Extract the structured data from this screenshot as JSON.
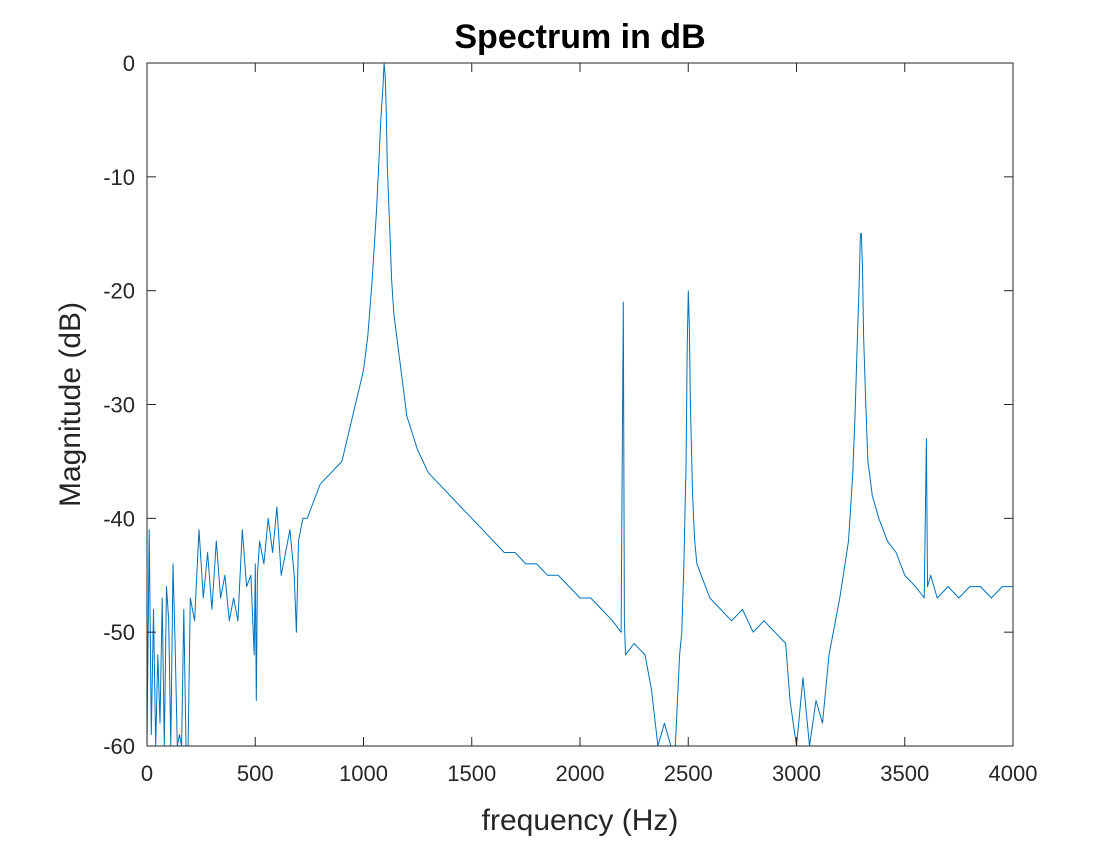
{
  "chart_data": {
    "type": "line",
    "title": "Spectrum in dB",
    "xlabel": "frequency (Hz)",
    "ylabel": "Magnitude (dB)",
    "xlim": [
      0,
      4000
    ],
    "ylim": [
      -60,
      0
    ],
    "xticks": [
      0,
      500,
      1000,
      1500,
      2000,
      2500,
      3000,
      3500,
      4000
    ],
    "xtick_labels": [
      "0",
      "500",
      "1000",
      "1500",
      "2000",
      "2500",
      "3000",
      "3500",
      "4000"
    ],
    "yticks": [
      0,
      -10,
      -20,
      -30,
      -40,
      -50,
      -60
    ],
    "ytick_labels": [
      "0",
      "-10",
      "-20",
      "-30",
      "-40",
      "-50",
      "-60"
    ],
    "grid": false,
    "series": [
      {
        "color": "#0072BD",
        "x": [
          0,
          10,
          20,
          30,
          40,
          50,
          60,
          70,
          80,
          90,
          100,
          110,
          120,
          130,
          140,
          150,
          160,
          170,
          180,
          190,
          200,
          220,
          240,
          260,
          280,
          300,
          320,
          340,
          360,
          380,
          400,
          420,
          440,
          460,
          480,
          495,
          500,
          505,
          510,
          520,
          540,
          560,
          580,
          600,
          620,
          640,
          660,
          680,
          690,
          700,
          720,
          740,
          760,
          780,
          800,
          850,
          900,
          950,
          1000,
          1020,
          1040,
          1060,
          1070,
          1080,
          1090,
          1095,
          1100,
          1105,
          1110,
          1120,
          1130,
          1140,
          1160,
          1180,
          1200,
          1250,
          1300,
          1350,
          1400,
          1450,
          1500,
          1550,
          1600,
          1650,
          1700,
          1750,
          1800,
          1850,
          1900,
          1950,
          2000,
          2050,
          2100,
          2150,
          2190,
          2200,
          2205,
          2210,
          2250,
          2300,
          2330,
          2360,
          2390,
          2420,
          2440,
          2460,
          2470,
          2480,
          2490,
          2495,
          2500,
          2505,
          2510,
          2520,
          2530,
          2540,
          2560,
          2600,
          2650,
          2700,
          2750,
          2800,
          2850,
          2900,
          2950,
          2970,
          3000,
          3030,
          3060,
          3090,
          3120,
          3150,
          3200,
          3240,
          3260,
          3270,
          3280,
          3290,
          3295,
          3300,
          3305,
          3310,
          3320,
          3330,
          3350,
          3380,
          3420,
          3460,
          3500,
          3550,
          3590,
          3600,
          3605,
          3620,
          3650,
          3700,
          3750,
          3800,
          3850,
          3900,
          3950,
          4000
        ],
        "y": [
          -60,
          -41,
          -59,
          -48,
          -60,
          -52,
          -58,
          -47,
          -60,
          -46,
          -49,
          -60,
          -44,
          -51,
          -60,
          -59,
          -60,
          -48,
          -60,
          -60,
          -47,
          -49,
          -41,
          -47,
          -43,
          -48,
          -42,
          -47,
          -45,
          -49,
          -47,
          -49,
          -41,
          -46,
          -45,
          -52,
          -44,
          -56,
          -45,
          -42,
          -44,
          -40,
          -43,
          -39,
          -45,
          -43,
          -41,
          -45,
          -50,
          -42,
          -40,
          -40,
          -39,
          -38,
          -37,
          -36,
          -35,
          -31,
          -27,
          -24,
          -19,
          -13,
          -9,
          -5,
          -2,
          0,
          -1,
          -4,
          -9,
          -14,
          -19,
          -22,
          -25,
          -28,
          -31,
          -34,
          -36,
          -37,
          -38,
          -39,
          -40,
          -41,
          -42,
          -43,
          -43,
          -44,
          -44,
          -45,
          -45,
          -46,
          -47,
          -47,
          -48,
          -49,
          -50,
          -21,
          -49,
          -52,
          -51,
          -52,
          -55,
          -60,
          -58,
          -60,
          -60,
          -52,
          -50,
          -44,
          -35,
          -25,
          -20,
          -23,
          -30,
          -38,
          -42,
          -44,
          -45,
          -47,
          -48,
          -49,
          -48,
          -50,
          -49,
          -50,
          -51,
          -56,
          -60,
          -54,
          -60,
          -56,
          -58,
          -52,
          -47,
          -42,
          -36,
          -31,
          -25,
          -19,
          -15,
          -15,
          -18,
          -24,
          -30,
          -35,
          -38,
          -40,
          -42,
          -43,
          -45,
          -46,
          -47,
          -33,
          -46,
          -45,
          -47,
          -46,
          -47,
          -46,
          -46,
          -47,
          -46,
          -46
        ]
      }
    ]
  }
}
